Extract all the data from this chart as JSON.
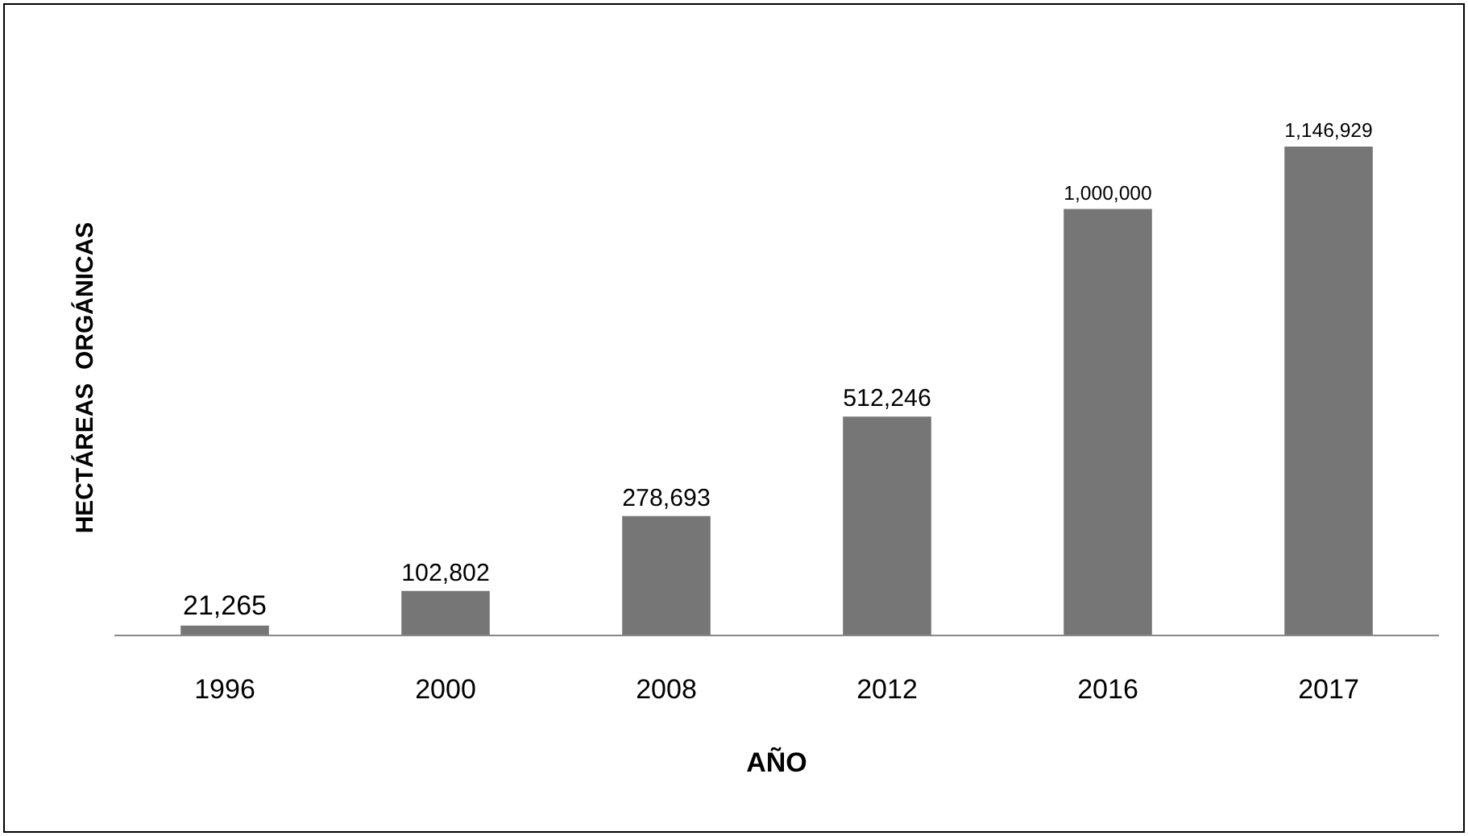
{
  "chart_data": {
    "type": "bar",
    "xlabel": "AÑO",
    "ylabel": "HECTÁREAS  ORGÁNICAS",
    "categories": [
      "1996",
      "2000",
      "2008",
      "2012",
      "2016",
      "2017"
    ],
    "values": [
      21265,
      102802,
      278693,
      512246,
      1000000,
      1146929
    ],
    "value_labels": [
      "21,265",
      "102,802",
      "278,693",
      "512,246",
      "1,000,000",
      "1,146,929"
    ],
    "color": "#767676",
    "grid": false,
    "legend": false
  }
}
